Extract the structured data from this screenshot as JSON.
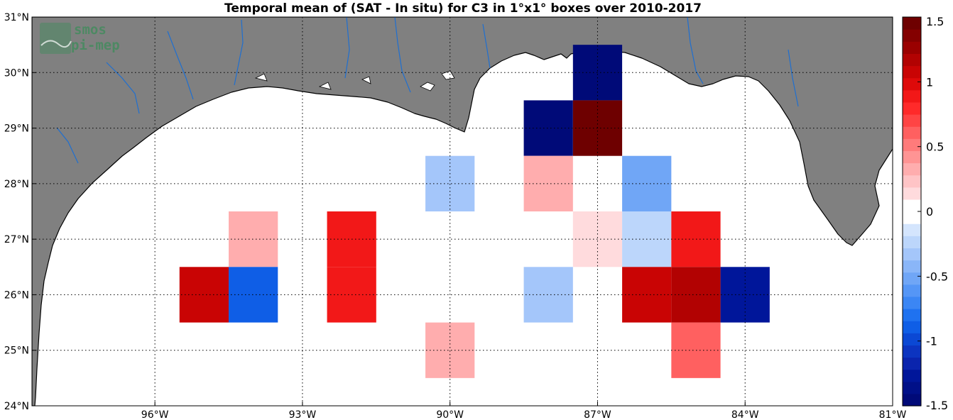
{
  "title": "Temporal mean of (SAT - In situ) for C3 in 1°x1° boxes over 2010-2017",
  "logo": {
    "line1": "smos",
    "line2": "pi-mep"
  },
  "map": {
    "lon_range": [
      -98.5,
      -81
    ],
    "lat_range": [
      24,
      31
    ],
    "lon_ticks": [
      {
        "value": -96,
        "label": "96°W"
      },
      {
        "value": -93,
        "label": "93°W"
      },
      {
        "value": -90,
        "label": "90°W"
      },
      {
        "value": -87,
        "label": "87°W"
      },
      {
        "value": -84,
        "label": "84°W"
      },
      {
        "value": -81,
        "label": "81°W"
      }
    ],
    "lat_ticks": [
      {
        "value": 24,
        "label": "24°N"
      },
      {
        "value": 25,
        "label": "25°N"
      },
      {
        "value": 26,
        "label": "26°N"
      },
      {
        "value": 27,
        "label": "27°N"
      },
      {
        "value": 28,
        "label": "28°N"
      },
      {
        "value": 29,
        "label": "29°N"
      },
      {
        "value": 30,
        "label": "30°N"
      },
      {
        "value": 31,
        "label": "31°N"
      }
    ],
    "land_color": "#808080",
    "ocean_color": "#ffffff",
    "river_color": "#1f6fd0",
    "grid": true
  },
  "chart_data": {
    "type": "heatmap",
    "title": "Temporal mean of (SAT - In situ) for C3 in 1°x1° boxes over 2010-2017",
    "box_size_deg": 1,
    "cells": [
      {
        "lon": -87,
        "lat": 30,
        "value": -1.5
      },
      {
        "lon": -88,
        "lat": 29,
        "value": -1.5
      },
      {
        "lon": -87,
        "lat": 29,
        "value": 1.5
      },
      {
        "lon": -90,
        "lat": 28,
        "value": -0.35
      },
      {
        "lon": -88,
        "lat": 28,
        "value": 0.35
      },
      {
        "lon": -86,
        "lat": 28,
        "value": -0.5
      },
      {
        "lon": -94,
        "lat": 27,
        "value": 0.35
      },
      {
        "lon": -92,
        "lat": 27,
        "value": 0.85
      },
      {
        "lon": -87,
        "lat": 27,
        "value": 0.15
      },
      {
        "lon": -86,
        "lat": 27,
        "value": -0.25
      },
      {
        "lon": -85,
        "lat": 27,
        "value": 0.85
      },
      {
        "lon": -95,
        "lat": 26,
        "value": 1.05
      },
      {
        "lon": -94,
        "lat": 26,
        "value": -0.9
      },
      {
        "lon": -92,
        "lat": 26,
        "value": 0.85
      },
      {
        "lon": -88,
        "lat": 26,
        "value": -0.35
      },
      {
        "lon": -86,
        "lat": 26,
        "value": 1.05
      },
      {
        "lon": -85,
        "lat": 26,
        "value": 1.15
      },
      {
        "lon": -84,
        "lat": 26,
        "value": -1.3
      },
      {
        "lon": -90,
        "lat": 25,
        "value": 0.35
      },
      {
        "lon": -85,
        "lat": 25,
        "value": 0.6
      }
    ],
    "colorbar": {
      "min": -1.5,
      "max": 1.5,
      "ticks": [
        {
          "value": 1.5,
          "label": "1.5"
        },
        {
          "value": 1,
          "label": "1"
        },
        {
          "value": 0.5,
          "label": "0.5"
        },
        {
          "value": 0,
          "label": "0"
        },
        {
          "value": -0.5,
          "label": "-0.5"
        },
        {
          "value": -1,
          "label": "-1"
        },
        {
          "value": -1.5,
          "label": "-1.5"
        }
      ],
      "colors_low_to_high": [
        "#000a78",
        "#001088",
        "#00169a",
        "#0a24ad",
        "#0c34c0",
        "#0b48d4",
        "#0f5ee6",
        "#1f72f0",
        "#3b86f4",
        "#5596f6",
        "#70a6f6",
        "#8ab6f8",
        "#a4c6fa",
        "#bcd6fb",
        "#d4e5fd",
        "#ffffff",
        "#ffffff",
        "#ffdbdd",
        "#ffc4c6",
        "#ffadae",
        "#ff9494",
        "#ff7b7b",
        "#ff6060",
        "#ff4444",
        "#ff2a2a",
        "#f21818",
        "#de0a0a",
        "#c90404",
        "#b20202",
        "#9a0000",
        "#840000",
        "#6e0000"
      ]
    }
  }
}
